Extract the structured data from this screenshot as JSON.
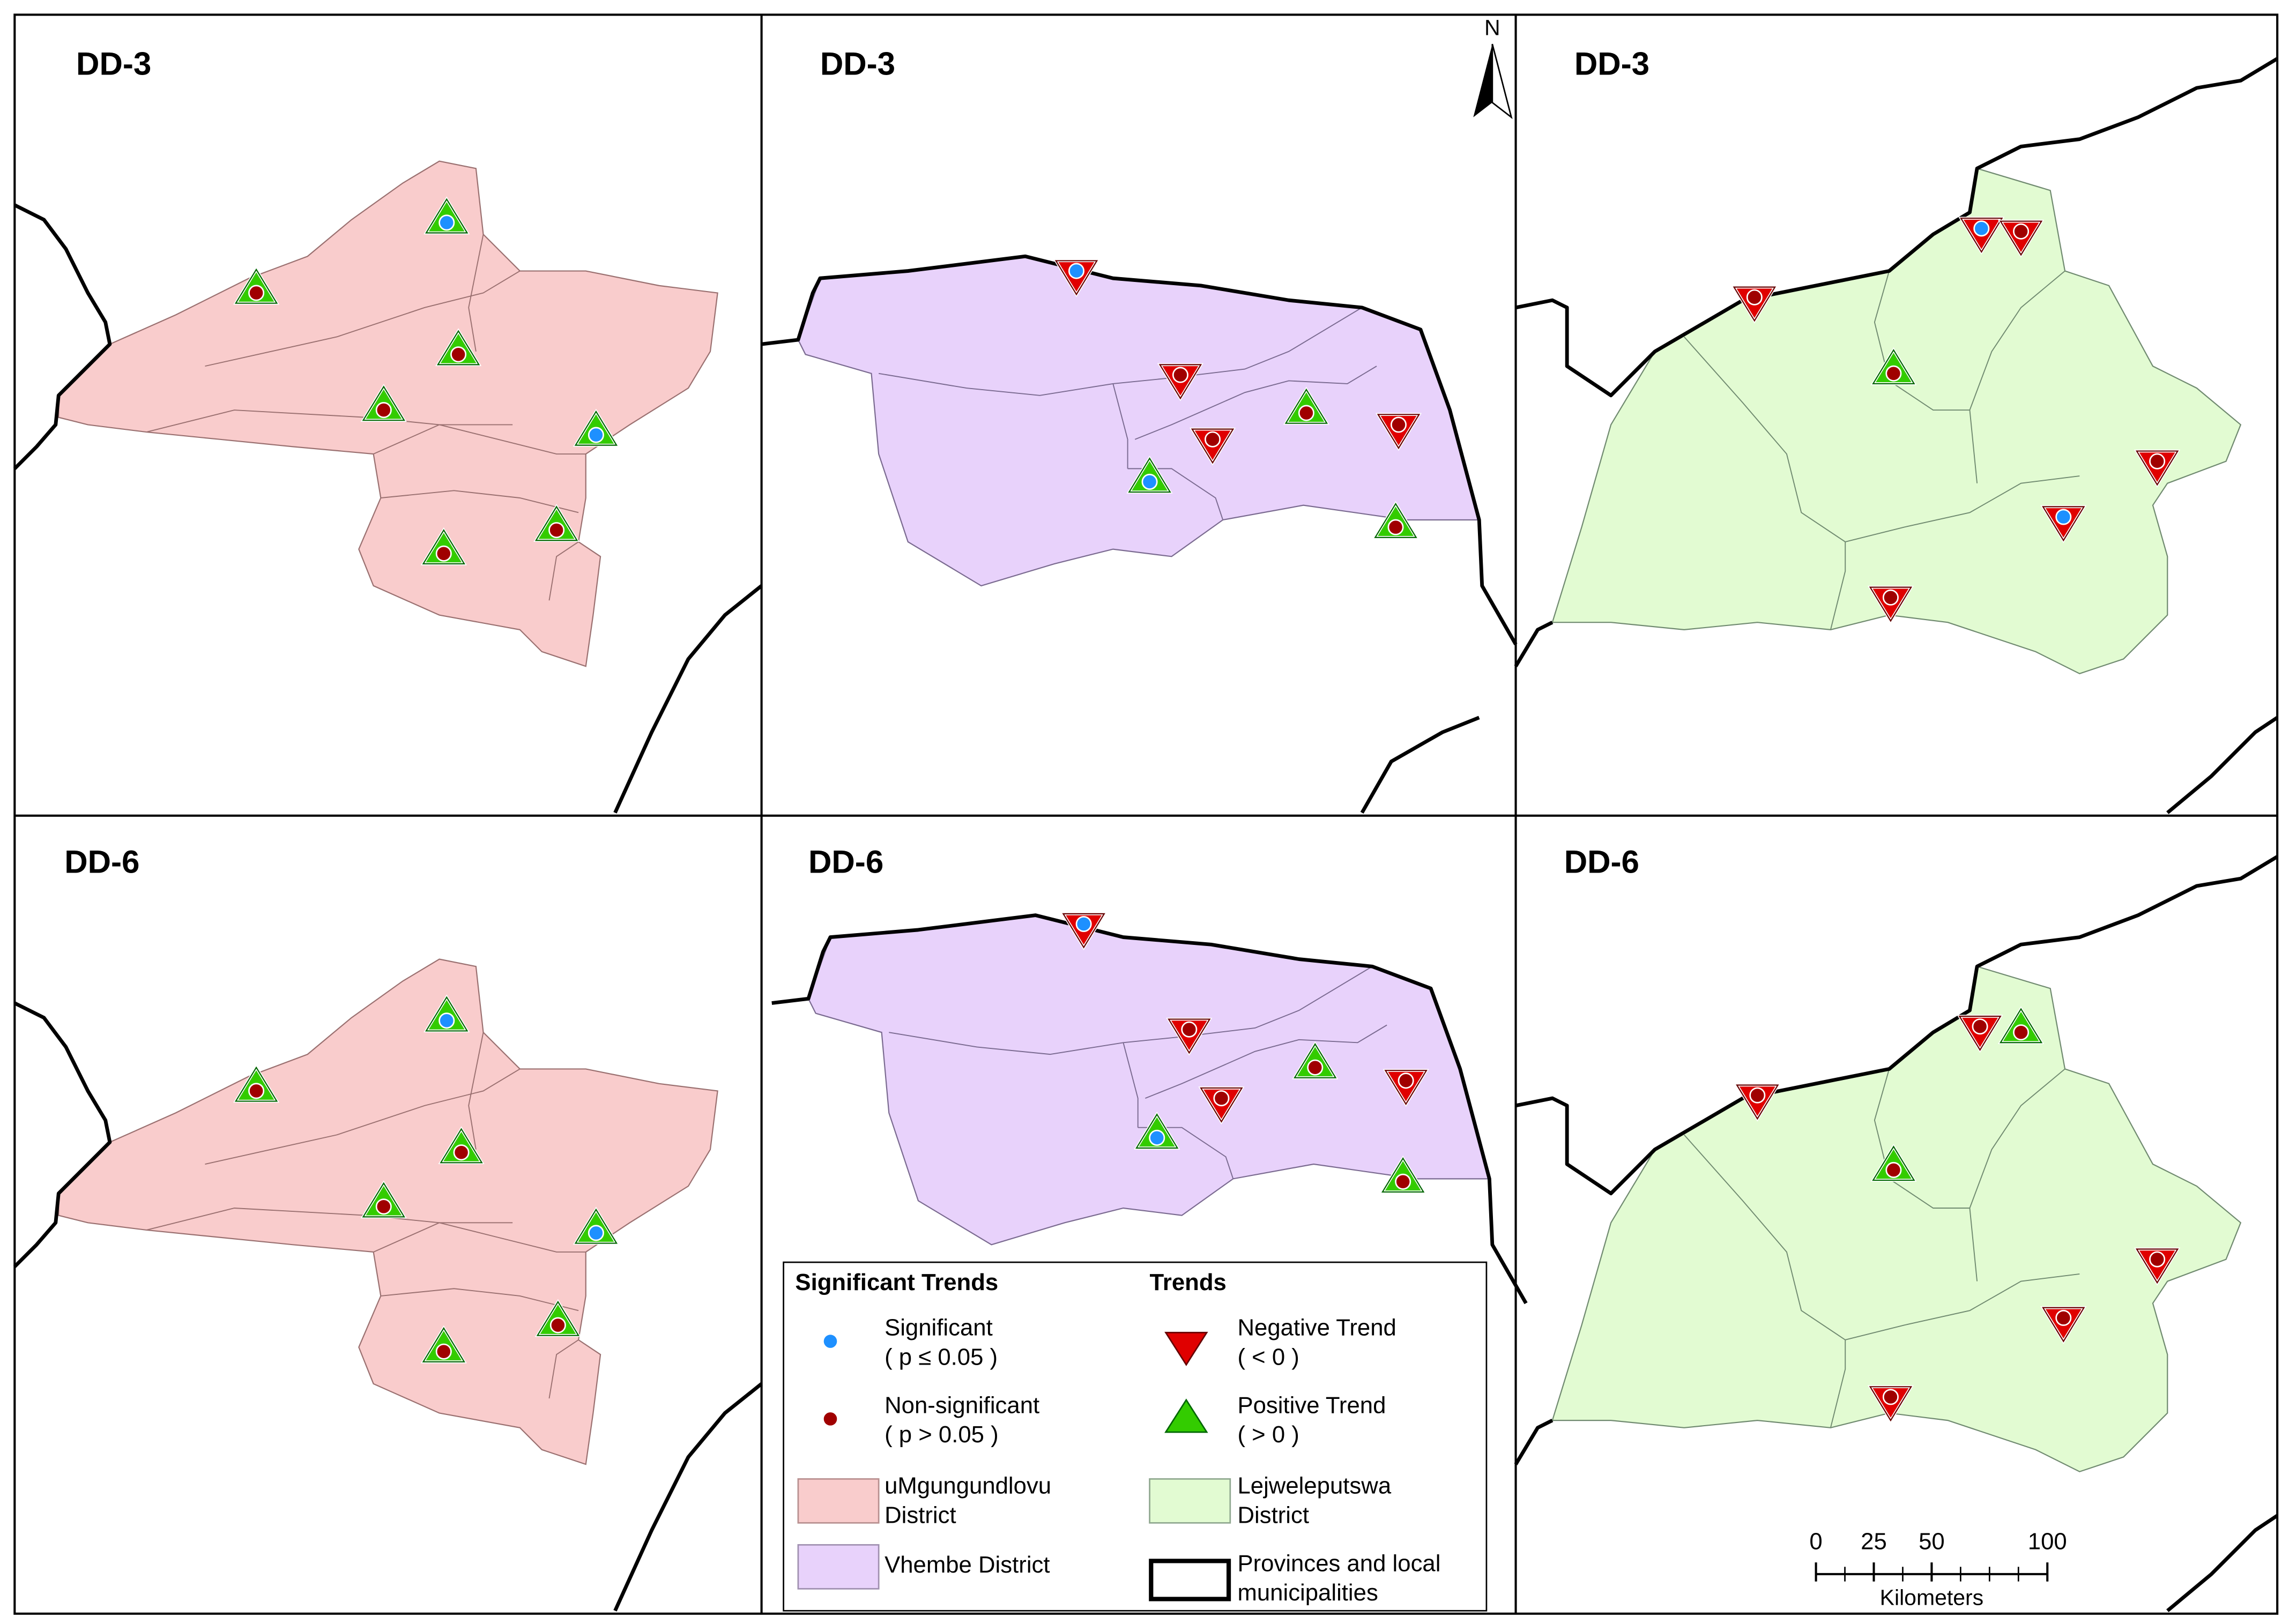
{
  "panels": [
    {
      "title": "DD-3"
    },
    {
      "title": "DD-3"
    },
    {
      "title": "DD-3"
    },
    {
      "title": "DD-6"
    },
    {
      "title": "DD-6"
    },
    {
      "title": "DD-6"
    }
  ],
  "north": "N",
  "legend": {
    "significance_heading": "Significant Trends",
    "trend_heading": "Trends",
    "significant": [
      "Significant",
      "( p ≤ 0.05 )"
    ],
    "non_significant": [
      "Non-significant",
      "( p > 0.05 )"
    ],
    "umgungundlovu": [
      "uMgungundlovu",
      "District"
    ],
    "vhembe": [
      "Vhembe District"
    ],
    "negative": [
      "Negative Trend",
      "( < 0 )"
    ],
    "positive": [
      "Positive Trend",
      "( > 0 )"
    ],
    "lejweleputswa": [
      "Lejweleputswa",
      "District"
    ],
    "boundaries": [
      "Provinces and local",
      "municipalities"
    ]
  },
  "scale": {
    "ticks": [
      0,
      25,
      50,
      100
    ],
    "unit": "Kilometers"
  }
}
